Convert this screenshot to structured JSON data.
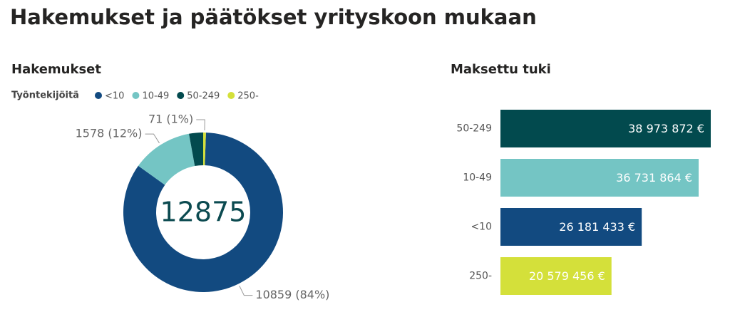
{
  "title": "Hakemukset ja päätökset yrityskoon mukaan",
  "chart_data": [
    {
      "type": "donut",
      "title": "Hakemukset",
      "legend_title": "Työntekijöitä",
      "categories": [
        "<10",
        "10-49",
        "50-249",
        "250-"
      ],
      "values": [
        10859,
        1578,
        367,
        71
      ],
      "value_labels": [
        "10859 (84%)",
        "1578 (12%)",
        null,
        "71 (1%)"
      ],
      "colors": [
        "#124a80",
        "#74c5c4",
        "#024a4e",
        "#d4e03a"
      ],
      "total": 12875
    },
    {
      "type": "hbar",
      "title": "Maksettu tuki",
      "categories": [
        "50-249",
        "10-49",
        "<10",
        "250-"
      ],
      "values": [
        38973872,
        36731864,
        26181433,
        20579456
      ],
      "value_labels": [
        "38 973 872 €",
        "36 731 864 €",
        "26 181 433 €",
        "20 579 456 €"
      ],
      "colors": [
        "#024a4e",
        "#74c5c4",
        "#124a80",
        "#d4e03a"
      ]
    }
  ]
}
